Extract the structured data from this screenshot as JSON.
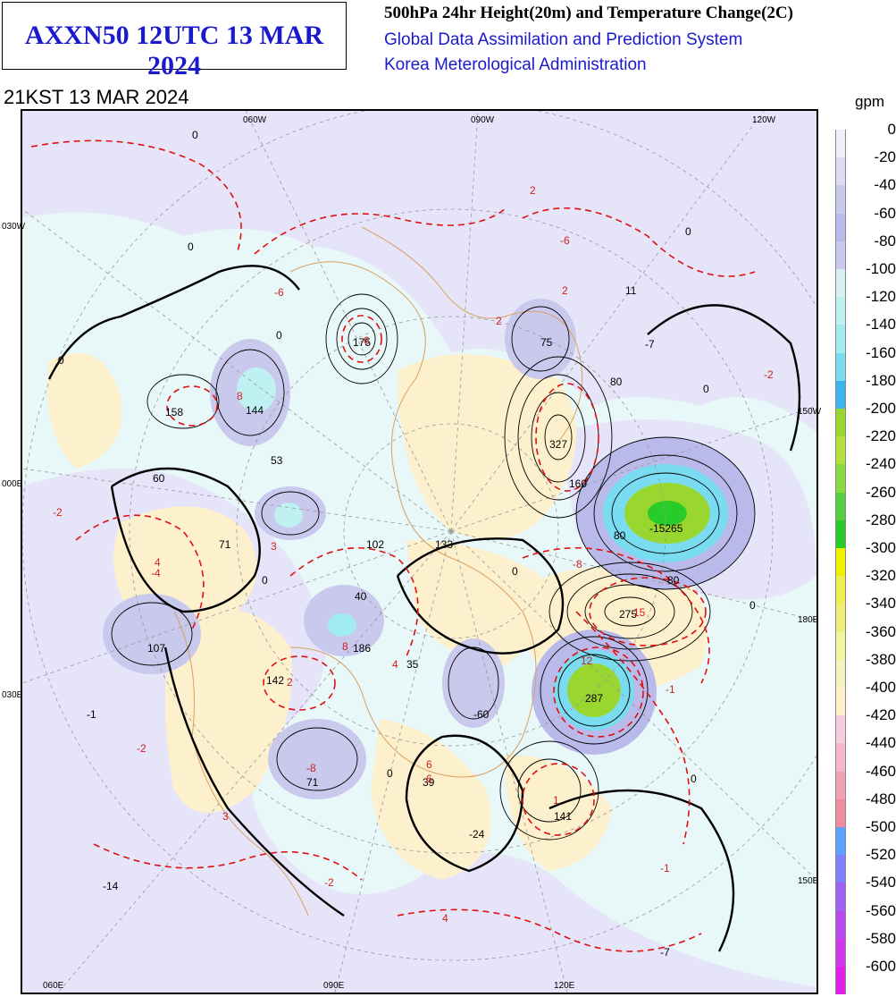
{
  "title_box": "AXXN50 12UTC 13 MAR 2024",
  "header": {
    "line1": "500hPa 24hr Height(20m) and Temperature Change(2C)",
    "line2": "Global Data Assimilation and Prediction System",
    "line3": "Korea Meterological Administration"
  },
  "valid_time": "21KST 13 MAR 2024",
  "colorbar": {
    "unit": "gpm",
    "levels": [
      "0",
      "-20",
      "-40",
      "-60",
      "-80",
      "-100",
      "-120",
      "-140",
      "-160",
      "-180",
      "-200",
      "-220",
      "-240",
      "-260",
      "-280",
      "-300",
      "-320",
      "-340",
      "-360",
      "-380",
      "-400",
      "-420",
      "-440",
      "-460",
      "-480",
      "-500",
      "-520",
      "-540",
      "-560",
      "-580",
      "-600"
    ],
    "colors": [
      "#efeefa",
      "#dcdcf2",
      "#c9c9ee",
      "#b9b9ea",
      "#c8c8f0",
      "#d6f0f4",
      "#bff0f2",
      "#a0ecf0",
      "#7adcf0",
      "#3cb4f0",
      "#9ad630",
      "#b4e040",
      "#88d840",
      "#54d040",
      "#28cc28",
      "#f0f000",
      "#eeee50",
      "#f0f078",
      "#f2f4a0",
      "#f4f2be",
      "#fff0c8",
      "#f6cce0",
      "#f4b8c8",
      "#f2a0b4",
      "#f08c9c",
      "#60a0ff",
      "#8080ff",
      "#a060f0",
      "#b848f0",
      "#d038ee",
      "#e020e8"
    ]
  },
  "map": {
    "meridian_labels": [
      "060W",
      "090W",
      "120W",
      "030W",
      "150W",
      "000E",
      "180E",
      "030E",
      "150E",
      "060E",
      "090E",
      "120E"
    ],
    "height_labels": [
      "175",
      "158",
      "144",
      "53",
      "60",
      "71",
      "102",
      "133",
      "40",
      "107",
      "186",
      "142",
      "35",
      "71",
      "39",
      "-24",
      "-60",
      "141",
      "327",
      "-15265",
      "275",
      "287",
      "11",
      "-7",
      "75",
      "-14",
      "-1",
      "-7"
    ],
    "temp_labels": [
      "2",
      "-6",
      "-6",
      "2",
      "2",
      "-6",
      "8",
      "-2",
      "-2",
      "4",
      "8",
      "3",
      "4",
      "2",
      "6",
      "15",
      "12",
      "-8",
      "-2",
      "-2",
      "-1",
      "4",
      "3",
      "1",
      "6",
      "-1",
      "-4",
      "-8"
    ],
    "contour_labels": [
      "0",
      "0",
      "0",
      "0",
      "80",
      "160",
      "80",
      "80",
      "0",
      "0",
      "0",
      "0",
      "0",
      "0",
      "0"
    ]
  }
}
